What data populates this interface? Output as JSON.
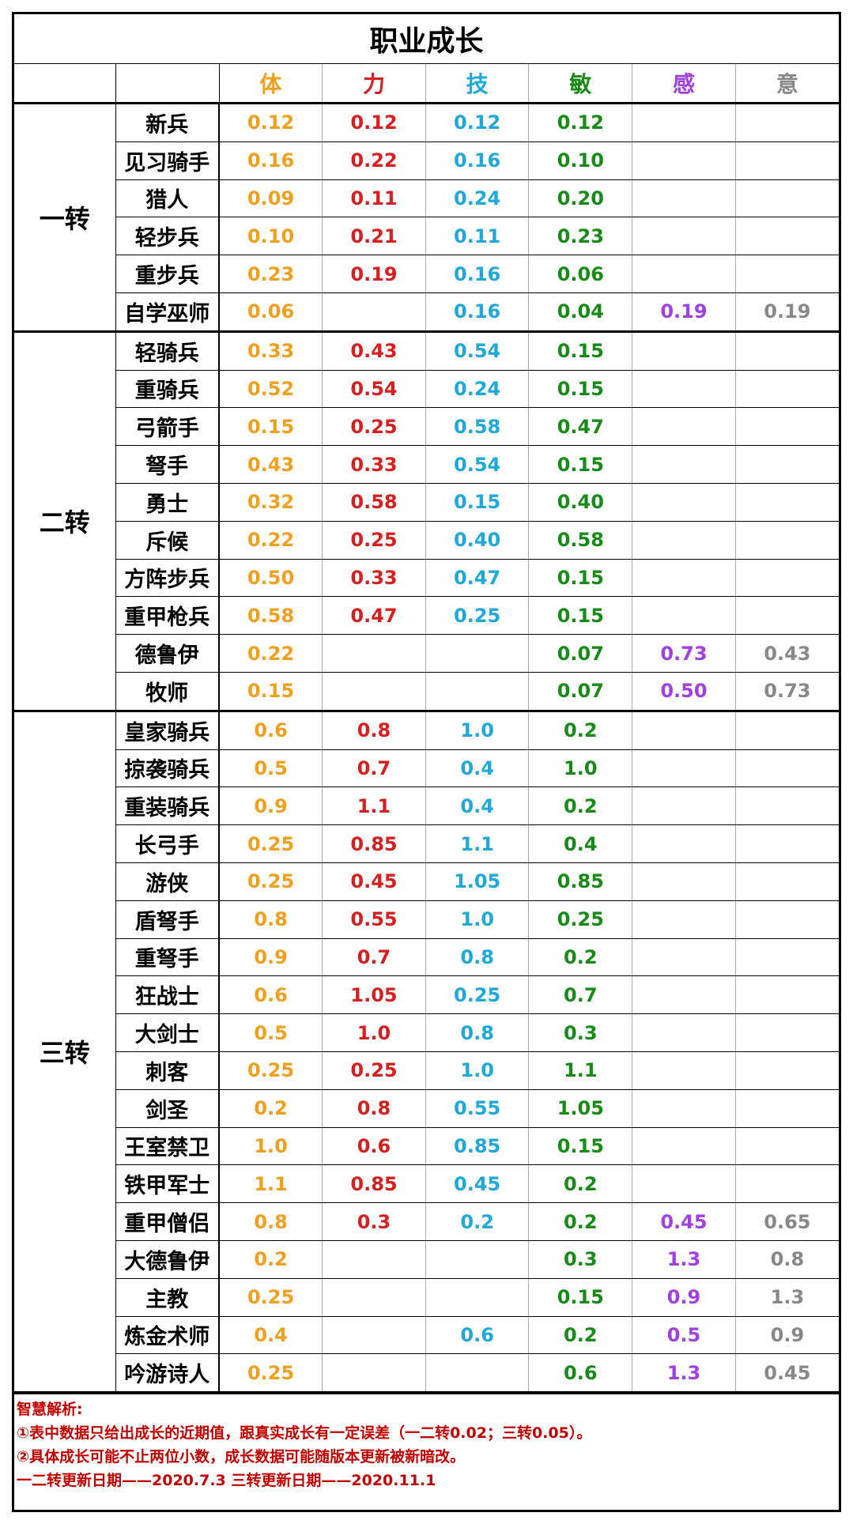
{
  "table": {
    "title": "职业成长",
    "columns": [
      {
        "label": "体",
        "color": "#f0a020"
      },
      {
        "label": "力",
        "color": "#d42020"
      },
      {
        "label": "技",
        "color": "#1fa8d8"
      },
      {
        "label": "敏",
        "color": "#178a17"
      },
      {
        "label": "感",
        "color": "#a040e0"
      },
      {
        "label": "意",
        "color": "#888888"
      }
    ],
    "groups": [
      {
        "label": "一转",
        "rows": [
          {
            "name": "新兵",
            "values": [
              "0.12",
              "0.12",
              "0.12",
              "0.12",
              null,
              null
            ]
          },
          {
            "name": "见习骑手",
            "values": [
              "0.16",
              "0.22",
              "0.16",
              "0.10",
              null,
              null
            ]
          },
          {
            "name": "猎人",
            "values": [
              "0.09",
              "0.11",
              "0.24",
              "0.20",
              null,
              null
            ]
          },
          {
            "name": "轻步兵",
            "values": [
              "0.10",
              "0.21",
              "0.11",
              "0.23",
              null,
              null
            ]
          },
          {
            "name": "重步兵",
            "values": [
              "0.23",
              "0.19",
              "0.16",
              "0.06",
              null,
              null
            ]
          },
          {
            "name": "自学巫师",
            "values": [
              "0.06",
              null,
              "0.16",
              "0.04",
              "0.19",
              "0.19"
            ]
          }
        ]
      },
      {
        "label": "二转",
        "rows": [
          {
            "name": "轻骑兵",
            "values": [
              "0.33",
              "0.43",
              "0.54",
              "0.15",
              null,
              null
            ]
          },
          {
            "name": "重骑兵",
            "values": [
              "0.52",
              "0.54",
              "0.24",
              "0.15",
              null,
              null
            ]
          },
          {
            "name": "弓箭手",
            "values": [
              "0.15",
              "0.25",
              "0.58",
              "0.47",
              null,
              null
            ]
          },
          {
            "name": "弩手",
            "values": [
              "0.43",
              "0.33",
              "0.54",
              "0.15",
              null,
              null
            ]
          },
          {
            "name": "勇士",
            "values": [
              "0.32",
              "0.58",
              "0.15",
              "0.40",
              null,
              null
            ]
          },
          {
            "name": "斥候",
            "values": [
              "0.22",
              "0.25",
              "0.40",
              "0.58",
              null,
              null
            ]
          },
          {
            "name": "方阵步兵",
            "values": [
              "0.50",
              "0.33",
              "0.47",
              "0.15",
              null,
              null
            ]
          },
          {
            "name": "重甲枪兵",
            "values": [
              "0.58",
              "0.47",
              "0.25",
              "0.15",
              null,
              null
            ]
          },
          {
            "name": "德鲁伊",
            "values": [
              "0.22",
              null,
              null,
              "0.07",
              "0.73",
              "0.43"
            ]
          },
          {
            "name": "牧师",
            "values": [
              "0.15",
              null,
              null,
              "0.07",
              "0.50",
              "0.73"
            ]
          }
        ]
      },
      {
        "label": "三转",
        "rows": [
          {
            "name": "皇家骑兵",
            "values": [
              "0.6",
              "0.8",
              "1.0",
              "0.2",
              null,
              null
            ]
          },
          {
            "name": "掠袭骑兵",
            "values": [
              "0.5",
              "0.7",
              "0.4",
              "1.0",
              null,
              null
            ]
          },
          {
            "name": "重装骑兵",
            "values": [
              "0.9",
              "1.1",
              "0.4",
              "0.2",
              null,
              null
            ]
          },
          {
            "name": "长弓手",
            "values": [
              "0.25",
              "0.85",
              "1.1",
              "0.4",
              null,
              null
            ]
          },
          {
            "name": "游侠",
            "values": [
              "0.25",
              "0.45",
              "1.05",
              "0.85",
              null,
              null
            ]
          },
          {
            "name": "盾弩手",
            "values": [
              "0.8",
              "0.55",
              "1.0",
              "0.25",
              null,
              null
            ]
          },
          {
            "name": "重弩手",
            "values": [
              "0.9",
              "0.7",
              "0.8",
              "0.2",
              null,
              null
            ]
          },
          {
            "name": "狂战士",
            "values": [
              "0.6",
              "1.05",
              "0.25",
              "0.7",
              null,
              null
            ]
          },
          {
            "name": "大剑士",
            "values": [
              "0.5",
              "1.0",
              "0.8",
              "0.3",
              null,
              null
            ]
          },
          {
            "name": "刺客",
            "values": [
              "0.25",
              "0.25",
              "1.0",
              "1.1",
              null,
              null
            ]
          },
          {
            "name": "剑圣",
            "values": [
              "0.2",
              "0.8",
              "0.55",
              "1.05",
              null,
              null
            ]
          },
          {
            "name": "王室禁卫",
            "values": [
              "1.0",
              "0.6",
              "0.85",
              "0.15",
              null,
              null
            ]
          },
          {
            "name": "铁甲军士",
            "values": [
              "1.1",
              "0.85",
              "0.45",
              "0.2",
              null,
              null
            ]
          },
          {
            "name": "重甲僧侣",
            "values": [
              "0.8",
              "0.3",
              "0.2",
              "0.2",
              "0.45",
              "0.65"
            ]
          },
          {
            "name": "大德鲁伊",
            "values": [
              "0.2",
              null,
              null,
              "0.3",
              "1.3",
              "0.8"
            ]
          },
          {
            "name": "主教",
            "values": [
              "0.25",
              null,
              null,
              "0.15",
              "0.9",
              "1.3"
            ]
          },
          {
            "name": "炼金术师",
            "values": [
              "0.4",
              null,
              "0.6",
              "0.2",
              "0.5",
              "0.9"
            ]
          },
          {
            "name": "吟游诗人",
            "values": [
              "0.25",
              null,
              null,
              "0.6",
              "1.3",
              "0.45"
            ]
          }
        ]
      }
    ]
  },
  "notes": {
    "heading": "智慧解析:",
    "lines": [
      "①表中数据只给出成长的近期值，跟真实成长有一定误差（一二转0.02；三转0.05）。",
      "②具体成长可能不止两位小数，成长数据可能随版本更新被新暗改。",
      "一二转更新日期——2020.7.3 三转更新日期——2020.11.1"
    ]
  }
}
